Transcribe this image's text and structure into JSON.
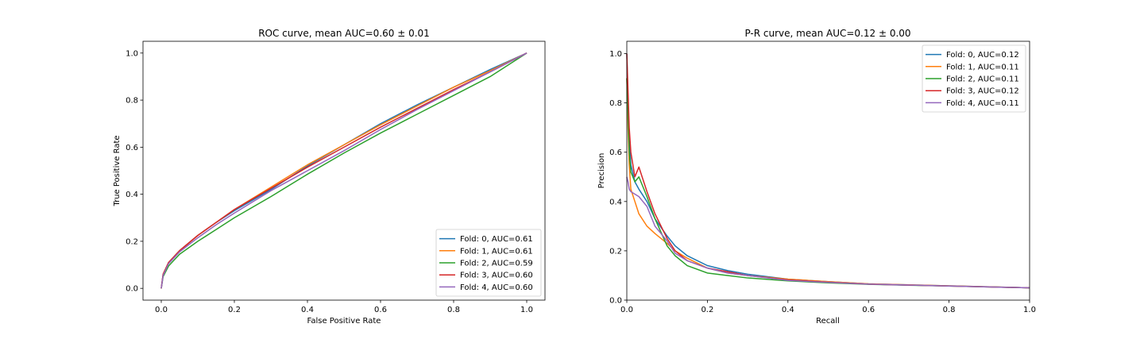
{
  "chart_data": [
    {
      "type": "line",
      "title": "ROC curve, mean AUC=0.60 ± 0.01",
      "xlabel": "False Positive Rate",
      "ylabel": "True Positive Rate",
      "xlim": [
        -0.05,
        1.05
      ],
      "ylim": [
        -0.05,
        1.05
      ],
      "xticks": [
        0.0,
        0.2,
        0.4,
        0.6,
        0.8,
        1.0
      ],
      "xtick_labels": [
        "0.0",
        "0.2",
        "0.4",
        "0.6",
        "0.8",
        "1.0"
      ],
      "yticks": [
        0.0,
        0.2,
        0.4,
        0.6,
        0.8,
        1.0
      ],
      "ytick_labels": [
        "0.0",
        "0.2",
        "0.4",
        "0.6",
        "0.8",
        "1.0"
      ],
      "grid": false,
      "legend_position": "bottom-right",
      "series": [
        {
          "name": "Fold: 0, AUC=0.61",
          "color": "#1f77b4",
          "points": [
            [
              0,
              0
            ],
            [
              0.005,
              0.06
            ],
            [
              0.02,
              0.11
            ],
            [
              0.05,
              0.16
            ],
            [
              0.1,
              0.225
            ],
            [
              0.15,
              0.28
            ],
            [
              0.2,
              0.33
            ],
            [
              0.3,
              0.42
            ],
            [
              0.4,
              0.52
            ],
            [
              0.5,
              0.61
            ],
            [
              0.6,
              0.7
            ],
            [
              0.7,
              0.78
            ],
            [
              0.8,
              0.855
            ],
            [
              0.9,
              0.93
            ],
            [
              1,
              1
            ]
          ]
        },
        {
          "name": "Fold: 1, AUC=0.61",
          "color": "#ff7f0e",
          "points": [
            [
              0,
              0
            ],
            [
              0.005,
              0.06
            ],
            [
              0.02,
              0.11
            ],
            [
              0.05,
              0.16
            ],
            [
              0.1,
              0.225
            ],
            [
              0.15,
              0.28
            ],
            [
              0.2,
              0.335
            ],
            [
              0.3,
              0.43
            ],
            [
              0.4,
              0.525
            ],
            [
              0.5,
              0.61
            ],
            [
              0.6,
              0.695
            ],
            [
              0.7,
              0.775
            ],
            [
              0.8,
              0.855
            ],
            [
              0.9,
              0.925
            ],
            [
              1,
              1
            ]
          ]
        },
        {
          "name": "Fold: 2, AUC=0.59",
          "color": "#2ca02c",
          "points": [
            [
              0,
              0
            ],
            [
              0.005,
              0.05
            ],
            [
              0.02,
              0.095
            ],
            [
              0.05,
              0.145
            ],
            [
              0.1,
              0.2
            ],
            [
              0.15,
              0.25
            ],
            [
              0.2,
              0.3
            ],
            [
              0.3,
              0.39
            ],
            [
              0.4,
              0.485
            ],
            [
              0.5,
              0.575
            ],
            [
              0.6,
              0.66
            ],
            [
              0.7,
              0.74
            ],
            [
              0.8,
              0.82
            ],
            [
              0.9,
              0.9
            ],
            [
              1,
              1
            ]
          ]
        },
        {
          "name": "Fold: 3, AUC=0.60",
          "color": "#d62728",
          "points": [
            [
              0,
              0
            ],
            [
              0.005,
              0.06
            ],
            [
              0.02,
              0.11
            ],
            [
              0.05,
              0.16
            ],
            [
              0.1,
              0.225
            ],
            [
              0.15,
              0.28
            ],
            [
              0.2,
              0.335
            ],
            [
              0.3,
              0.425
            ],
            [
              0.4,
              0.515
            ],
            [
              0.5,
              0.6
            ],
            [
              0.6,
              0.685
            ],
            [
              0.7,
              0.765
            ],
            [
              0.8,
              0.845
            ],
            [
              0.9,
              0.92
            ],
            [
              1,
              1
            ]
          ]
        },
        {
          "name": "Fold: 4, AUC=0.60",
          "color": "#9467bd",
          "points": [
            [
              0,
              0
            ],
            [
              0.005,
              0.055
            ],
            [
              0.02,
              0.105
            ],
            [
              0.05,
              0.155
            ],
            [
              0.1,
              0.215
            ],
            [
              0.15,
              0.27
            ],
            [
              0.2,
              0.32
            ],
            [
              0.3,
              0.415
            ],
            [
              0.4,
              0.5
            ],
            [
              0.5,
              0.585
            ],
            [
              0.6,
              0.675
            ],
            [
              0.7,
              0.76
            ],
            [
              0.8,
              0.84
            ],
            [
              0.9,
              0.92
            ],
            [
              1,
              1
            ]
          ]
        }
      ]
    },
    {
      "type": "line",
      "title": "P-R curve, mean AUC=0.12 ± 0.00",
      "xlabel": "Recall",
      "ylabel": "Precision",
      "xlim": [
        0,
        1
      ],
      "ylim": [
        0,
        1.05
      ],
      "xticks": [
        0.0,
        0.2,
        0.4,
        0.6,
        0.8,
        1.0
      ],
      "xtick_labels": [
        "0.0",
        "0.2",
        "0.4",
        "0.6",
        "0.8",
        "1.0"
      ],
      "yticks": [
        0.0,
        0.2,
        0.4,
        0.6,
        0.8,
        1.0
      ],
      "ytick_labels": [
        "0.0",
        "0.2",
        "0.4",
        "0.6",
        "0.8",
        "1.0"
      ],
      "grid": false,
      "legend_position": "top-right",
      "series": [
        {
          "name": "Fold: 0, AUC=0.12",
          "color": "#1f77b4",
          "points": [
            [
              0,
              1.0
            ],
            [
              0.003,
              0.8
            ],
            [
              0.006,
              0.65
            ],
            [
              0.01,
              0.55
            ],
            [
              0.02,
              0.48
            ],
            [
              0.03,
              0.45
            ],
            [
              0.05,
              0.4
            ],
            [
              0.07,
              0.33
            ],
            [
              0.1,
              0.26
            ],
            [
              0.12,
              0.22
            ],
            [
              0.15,
              0.18
            ],
            [
              0.2,
              0.14
            ],
            [
              0.25,
              0.12
            ],
            [
              0.3,
              0.105
            ],
            [
              0.4,
              0.085
            ],
            [
              0.5,
              0.075
            ],
            [
              0.6,
              0.066
            ],
            [
              0.8,
              0.058
            ],
            [
              1,
              0.05
            ]
          ]
        },
        {
          "name": "Fold: 1, AUC=0.11",
          "color": "#ff7f0e",
          "points": [
            [
              0,
              0.9
            ],
            [
              0.003,
              0.7
            ],
            [
              0.006,
              0.55
            ],
            [
              0.01,
              0.45
            ],
            [
              0.02,
              0.4
            ],
            [
              0.03,
              0.35
            ],
            [
              0.05,
              0.3
            ],
            [
              0.07,
              0.27
            ],
            [
              0.1,
              0.23
            ],
            [
              0.12,
              0.2
            ],
            [
              0.15,
              0.17
            ],
            [
              0.2,
              0.13
            ],
            [
              0.25,
              0.11
            ],
            [
              0.3,
              0.1
            ],
            [
              0.4,
              0.085
            ],
            [
              0.5,
              0.075
            ],
            [
              0.6,
              0.066
            ],
            [
              0.8,
              0.058
            ],
            [
              1,
              0.05
            ]
          ]
        },
        {
          "name": "Fold: 2, AUC=0.11",
          "color": "#2ca02c",
          "points": [
            [
              0,
              0.9
            ],
            [
              0.003,
              0.75
            ],
            [
              0.006,
              0.6
            ],
            [
              0.01,
              0.52
            ],
            [
              0.02,
              0.48
            ],
            [
              0.03,
              0.5
            ],
            [
              0.05,
              0.42
            ],
            [
              0.07,
              0.33
            ],
            [
              0.1,
              0.22
            ],
            [
              0.12,
              0.18
            ],
            [
              0.15,
              0.14
            ],
            [
              0.2,
              0.11
            ],
            [
              0.25,
              0.1
            ],
            [
              0.3,
              0.09
            ],
            [
              0.4,
              0.078
            ],
            [
              0.5,
              0.07
            ],
            [
              0.6,
              0.064
            ],
            [
              0.8,
              0.057
            ],
            [
              1,
              0.05
            ]
          ]
        },
        {
          "name": "Fold: 3, AUC=0.12",
          "color": "#d62728",
          "points": [
            [
              0,
              1.0
            ],
            [
              0.003,
              0.85
            ],
            [
              0.006,
              0.7
            ],
            [
              0.01,
              0.6
            ],
            [
              0.02,
              0.5
            ],
            [
              0.03,
              0.54
            ],
            [
              0.05,
              0.44
            ],
            [
              0.07,
              0.35
            ],
            [
              0.1,
              0.25
            ],
            [
              0.12,
              0.2
            ],
            [
              0.15,
              0.16
            ],
            [
              0.2,
              0.13
            ],
            [
              0.25,
              0.115
            ],
            [
              0.3,
              0.1
            ],
            [
              0.4,
              0.082
            ],
            [
              0.5,
              0.073
            ],
            [
              0.6,
              0.065
            ],
            [
              0.8,
              0.057
            ],
            [
              1,
              0.05
            ]
          ]
        },
        {
          "name": "Fold: 4, AUC=0.11",
          "color": "#9467bd",
          "points": [
            [
              0,
              0.5
            ],
            [
              0.003,
              0.48
            ],
            [
              0.006,
              0.45
            ],
            [
              0.01,
              0.44
            ],
            [
              0.02,
              0.43
            ],
            [
              0.03,
              0.42
            ],
            [
              0.05,
              0.38
            ],
            [
              0.07,
              0.3
            ],
            [
              0.1,
              0.24
            ],
            [
              0.12,
              0.19
            ],
            [
              0.15,
              0.16
            ],
            [
              0.2,
              0.13
            ],
            [
              0.25,
              0.11
            ],
            [
              0.3,
              0.1
            ],
            [
              0.4,
              0.08
            ],
            [
              0.5,
              0.072
            ],
            [
              0.6,
              0.065
            ],
            [
              0.8,
              0.057
            ],
            [
              1,
              0.05
            ]
          ]
        }
      ]
    }
  ]
}
